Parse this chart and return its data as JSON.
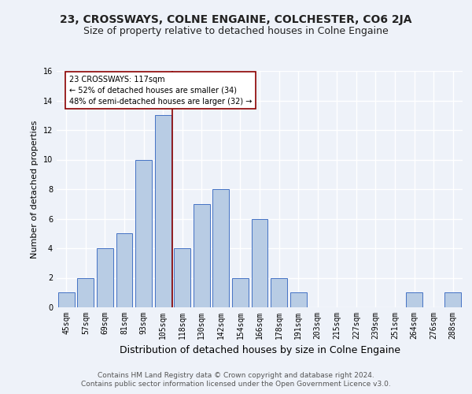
{
  "title": "23, CROSSWAYS, COLNE ENGAINE, COLCHESTER, CO6 2JA",
  "subtitle": "Size of property relative to detached houses in Colne Engaine",
  "xlabel": "Distribution of detached houses by size in Colne Engaine",
  "ylabel": "Number of detached properties",
  "bin_labels": [
    "45sqm",
    "57sqm",
    "69sqm",
    "81sqm",
    "93sqm",
    "105sqm",
    "118sqm",
    "130sqm",
    "142sqm",
    "154sqm",
    "166sqm",
    "178sqm",
    "191sqm",
    "203sqm",
    "215sqm",
    "227sqm",
    "239sqm",
    "251sqm",
    "264sqm",
    "276sqm",
    "288sqm"
  ],
  "bar_heights": [
    1,
    2,
    4,
    5,
    10,
    13,
    4,
    7,
    8,
    2,
    6,
    2,
    1,
    0,
    0,
    0,
    0,
    0,
    1,
    0,
    1
  ],
  "bar_color": "#b8cce4",
  "bar_edge_color": "#4472c4",
  "vline_x_index": 5.5,
  "vline_color": "#8B0000",
  "annotation_text": "23 CROSSWAYS: 117sqm\n← 52% of detached houses are smaller (34)\n48% of semi-detached houses are larger (32) →",
  "annotation_box_color": "#ffffff",
  "annotation_box_edge": "#8B0000",
  "ylim": [
    0,
    16
  ],
  "yticks": [
    0,
    2,
    4,
    6,
    8,
    10,
    12,
    14,
    16
  ],
  "footer": "Contains HM Land Registry data © Crown copyright and database right 2024.\nContains public sector information licensed under the Open Government Licence v3.0.",
  "bg_color": "#eef2f9",
  "grid_color": "#ffffff",
  "title_fontsize": 10,
  "subtitle_fontsize": 9,
  "xlabel_fontsize": 9,
  "ylabel_fontsize": 8,
  "tick_fontsize": 7,
  "footer_fontsize": 6.5,
  "annot_fontsize": 7
}
